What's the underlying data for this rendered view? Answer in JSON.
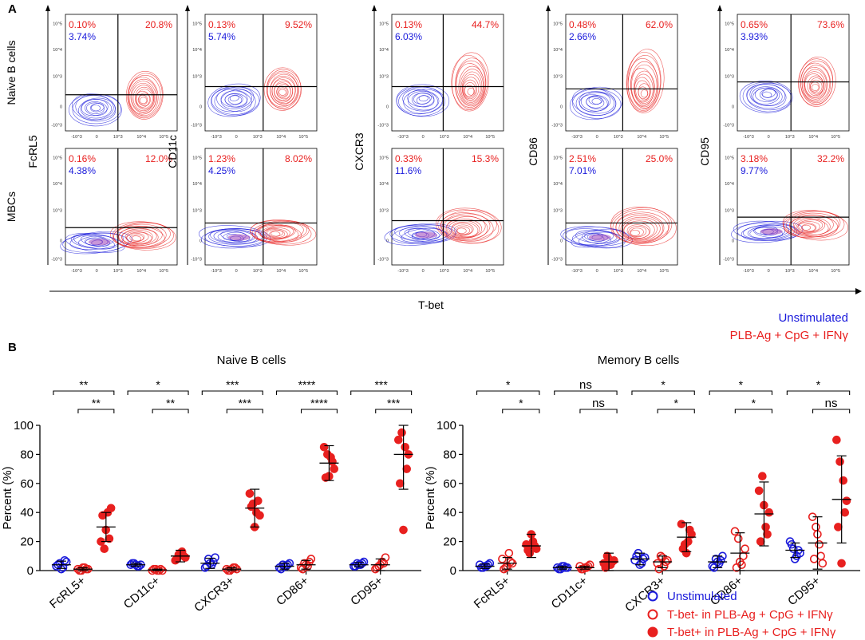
{
  "panel_a": {
    "label": "A",
    "x_axis_label": "T-bet",
    "row_labels": [
      "Naive B cells",
      "MBCs"
    ],
    "markers": [
      "FcRL5",
      "CD11c",
      "CXCR3",
      "CD86",
      "CD95"
    ],
    "tick_labels_y": [
      "10^5",
      "10^4",
      "10^3",
      "0",
      "-10^3"
    ],
    "tick_labels_x": [
      "-10^3",
      "0",
      "10^3",
      "10^4",
      "10^5"
    ],
    "legend": {
      "unstimulated": "Unstimulated",
      "stimulated": "PLB-Ag + CpG + IFNγ"
    },
    "colors": {
      "unstimulated": "#1a1adb",
      "stimulated": "#e8201f"
    },
    "quadrants": [
      [
        {
          "ul_red": "0.10%",
          "ul_blue": "3.74%",
          "ur_red": "20.8%"
        },
        {
          "ul_red": "0.13%",
          "ul_blue": "5.74%",
          "ur_red": "9.52%"
        },
        {
          "ul_red": "0.13%",
          "ul_blue": "6.03%",
          "ur_red": "44.7%"
        },
        {
          "ul_red": "0.48%",
          "ul_blue": "2.66%",
          "ur_red": "62.0%"
        },
        {
          "ul_red": "0.65%",
          "ul_blue": "3.93%",
          "ur_red": "73.6%"
        }
      ],
      [
        {
          "ul_red": "0.16%",
          "ul_blue": "4.38%",
          "ur_red": "12.0%"
        },
        {
          "ul_red": "1.23%",
          "ul_blue": "4.25%",
          "ur_red": "8.02%"
        },
        {
          "ul_red": "0.33%",
          "ul_blue": "11.6%",
          "ur_red": "15.3%"
        },
        {
          "ul_red": "2.51%",
          "ul_blue": "7.01%",
          "ur_red": "25.0%"
        },
        {
          "ul_red": "3.18%",
          "ul_blue": "9.77%",
          "ur_red": "32.2%"
        }
      ]
    ]
  },
  "panel_b": {
    "label": "B",
    "legend": [
      {
        "label": "Unstimulated",
        "style": "open-blue"
      },
      {
        "label": "T-bet- in PLB-Ag + CpG + IFNγ",
        "style": "open-red"
      },
      {
        "label": "T-bet+ in PLB-Ag + CpG + IFNγ",
        "style": "filled-red"
      }
    ]
  },
  "chart_data": [
    {
      "type": "scatter",
      "title": "Naive B cells",
      "ylabel": "Percent (%)",
      "xlabel": "",
      "ylim": [
        0,
        100
      ],
      "yticks": [
        0,
        20,
        40,
        60,
        80,
        100
      ],
      "categories": [
        "FcRL5+",
        "CD11c+",
        "CXCR3+",
        "CD86+",
        "CD95+"
      ],
      "series": [
        {
          "name": "Unstimulated",
          "mean": [
            4,
            4,
            5,
            3,
            4
          ],
          "sd": [
            2.5,
            1,
            3.5,
            2,
            1.5
          ],
          "points": [
            [
              3,
              5,
              2,
              6,
              4,
              1,
              7
            ],
            [
              4,
              5,
              3,
              4,
              5,
              4,
              3
            ],
            [
              2,
              8,
              4,
              9,
              3,
              5,
              6
            ],
            [
              2,
              4,
              3,
              5,
              1,
              3,
              4
            ],
            [
              3,
              5,
              4,
              6,
              3,
              4,
              5
            ]
          ]
        },
        {
          "name": "T-bet- in PLB-Ag + CpG + IFNγ",
          "mean": [
            1,
            0.5,
            1,
            4,
            4
          ],
          "sd": [
            1,
            0.5,
            1,
            3,
            4
          ],
          "points": [
            [
              1,
              0,
              2,
              1,
              0,
              2,
              1
            ],
            [
              0,
              1,
              0,
              0,
              1,
              0,
              1
            ],
            [
              1,
              0,
              2,
              1,
              0,
              1,
              2
            ],
            [
              2,
              5,
              3,
              8,
              1,
              4,
              6
            ],
            [
              1,
              3,
              6,
              9,
              2,
              4,
              5
            ]
          ]
        },
        {
          "name": "T-bet+ in PLB-Ag + CpG + IFNγ",
          "mean": [
            30,
            10,
            43,
            74,
            80
          ],
          "sd": [
            10,
            4,
            13,
            12,
            24
          ],
          "points": [
            [
              20,
              15,
              40,
              43,
              38,
              28,
              22
            ],
            [
              7,
              11,
              13,
              9,
              8,
              12,
              10
            ],
            [
              53,
              46,
              40,
              38,
              44,
              30,
              48
            ],
            [
              85,
              80,
              78,
              70,
              64,
              65,
              75
            ],
            [
              90,
              95,
              85,
              80,
              60,
              28,
              70
            ]
          ]
        }
      ],
      "significance": [
        {
          "pair": "Unstim vs T-bet+",
          "label": [
            "**",
            "*",
            "***",
            "****",
            "***"
          ]
        },
        {
          "pair": "T-bet- vs T-bet+",
          "label": [
            "**",
            "**",
            "***",
            "****",
            "***"
          ]
        }
      ]
    },
    {
      "type": "scatter",
      "title": "Memory B cells",
      "ylabel": "Percent (%)",
      "xlabel": "",
      "ylim": [
        0,
        100
      ],
      "yticks": [
        0,
        20,
        40,
        60,
        80,
        100
      ],
      "categories": [
        "FcRL5+",
        "CD11c+",
        "CXCR3+",
        "CD86+",
        "CD95+"
      ],
      "series": [
        {
          "name": "Unstimulated",
          "mean": [
            3,
            2,
            8,
            6,
            14
          ],
          "sd": [
            1.5,
            1,
            4,
            4,
            5
          ],
          "points": [
            [
              4,
              2,
              3,
              5,
              2,
              3,
              4
            ],
            [
              2,
              1,
              3,
              2,
              1,
              3,
              2
            ],
            [
              7,
              12,
              5,
              9,
              10,
              4,
              8
            ],
            [
              3,
              8,
              5,
              10,
              2,
              6,
              7
            ],
            [
              20,
              15,
              10,
              12,
              18,
              8,
              14
            ]
          ]
        },
        {
          "name": "T-bet- in PLB-Ag + CpG + IFNγ",
          "mean": [
            5,
            2,
            6,
            12,
            19
          ],
          "sd": [
            4,
            1,
            4,
            14,
            18
          ],
          "points": [
            [
              8,
              2,
              12,
              5,
              1,
              3,
              6
            ],
            [
              3,
              1,
              2,
              4,
              1,
              2,
              3
            ],
            [
              5,
              10,
              3,
              7,
              1,
              9,
              6
            ],
            [
              27,
              22,
              4,
              15,
              2,
              6,
              10
            ],
            [
              37,
              30,
              18,
              5,
              8,
              25,
              10
            ]
          ]
        },
        {
          "name": "T-bet+ in PLB-Ag + CpG + IFNγ",
          "mean": [
            17,
            6,
            23,
            39,
            49
          ],
          "sd": [
            8,
            6,
            10,
            22,
            30
          ],
          "points": [
            [
              18,
              12,
              20,
              15,
              14,
              25,
              17
            ],
            [
              5,
              10,
              4,
              7,
              2,
              8,
              6
            ],
            [
              32,
              18,
              20,
              25,
              15,
              12,
              28
            ],
            [
              55,
              65,
              30,
              40,
              20,
              45,
              25
            ],
            [
              90,
              75,
              62,
              48,
              30,
              5,
              40
            ]
          ]
        }
      ],
      "significance": [
        {
          "pair": "Unstim vs T-bet+",
          "label": [
            "*",
            "ns",
            "*",
            "*",
            "*"
          ]
        },
        {
          "pair": "T-bet- vs T-bet+",
          "label": [
            "*",
            "ns",
            "*",
            "*",
            "ns"
          ]
        }
      ]
    }
  ]
}
